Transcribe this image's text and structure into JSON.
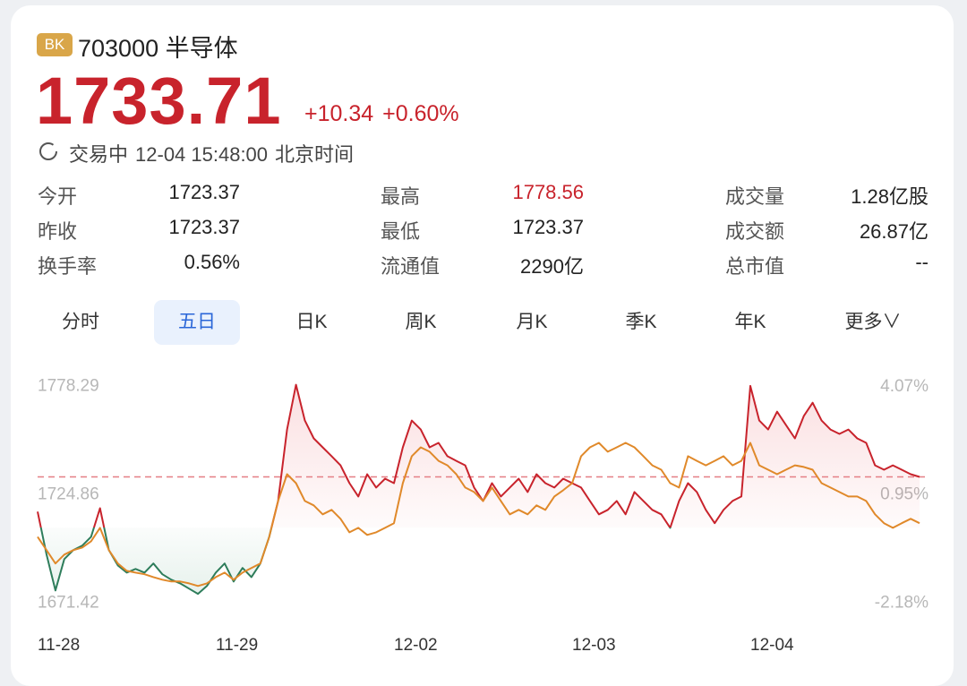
{
  "header": {
    "badge": "BK",
    "code": "703000",
    "name": "半导体"
  },
  "quote": {
    "price": 1733.71,
    "change": "+10.34",
    "change_pct": "+0.60%",
    "status": "交易中",
    "time": "12-04 15:48:00",
    "timezone": "北京时间"
  },
  "stats": [
    [
      {
        "label": "今开",
        "value": "1723.37"
      },
      {
        "label": "最高",
        "value": "1778.56",
        "highlight": true
      },
      {
        "label": "成交量",
        "value": "1.28亿股"
      }
    ],
    [
      {
        "label": "昨收",
        "value": "1723.37"
      },
      {
        "label": "最低",
        "value": "1723.37"
      },
      {
        "label": "成交额",
        "value": "26.87亿"
      }
    ],
    [
      {
        "label": "换手率",
        "value": "0.56%"
      },
      {
        "label": "流通值",
        "value": "2290亿"
      },
      {
        "label": "总市值",
        "value": "--"
      }
    ]
  ],
  "tabs": [
    "分时",
    "五日",
    "日K",
    "周K",
    "月K",
    "季K",
    "年K",
    "更多∨"
  ],
  "selected_tab": 1,
  "chart_data": {
    "type": "line",
    "categories": [
      "11-28",
      null,
      null,
      null,
      null,
      null,
      null,
      null,
      null,
      null,
      null,
      null,
      null,
      null,
      null,
      null,
      null,
      null,
      null,
      null,
      "11-29",
      null,
      null,
      null,
      null,
      null,
      null,
      null,
      null,
      null,
      null,
      null,
      null,
      null,
      null,
      null,
      null,
      null,
      null,
      null,
      "12-02",
      null,
      null,
      null,
      null,
      null,
      null,
      null,
      null,
      null,
      null,
      null,
      null,
      null,
      null,
      null,
      null,
      null,
      null,
      null,
      "12-03",
      null,
      null,
      null,
      null,
      null,
      null,
      null,
      null,
      null,
      null,
      null,
      null,
      null,
      null,
      null,
      null,
      null,
      null,
      null,
      "12-04",
      null,
      null,
      null,
      null,
      null,
      null,
      null,
      null,
      null,
      null,
      null,
      null,
      null,
      null,
      null,
      null,
      null,
      null,
      null
    ],
    "series": [
      {
        "color": "#c8232c",
        "below_color": "#2e7d5b",
        "fill": true,
        "values": [
          1716.5,
          1695.3,
          1677.6,
          1693.1,
          1697.5,
          1699.7,
          1704.1,
          1718.2,
          1697.5,
          1690.0,
          1686.4,
          1688.2,
          1686.4,
          1690.9,
          1685.6,
          1682.9,
          1681.1,
          1678.5,
          1675.9,
          1679.8,
          1686.4,
          1690.9,
          1682.0,
          1688.7,
          1684.2,
          1690.9,
          1704.1,
          1721.8,
          1757.1,
          1779.2,
          1761.5,
          1752.7,
          1748.3,
          1743.9,
          1739.4,
          1730.6,
          1724.0,
          1735.0,
          1728.4,
          1732.8,
          1730.6,
          1748.3,
          1761.5,
          1757.1,
          1748.3,
          1750.5,
          1743.9,
          1741.6,
          1739.4,
          1728.4,
          1721.8,
          1730.6,
          1724.0,
          1728.4,
          1732.8,
          1726.2,
          1735.0,
          1730.6,
          1728.4,
          1732.8,
          1730.6,
          1728.4,
          1721.8,
          1715.2,
          1717.4,
          1721.8,
          1715.2,
          1726.2,
          1721.8,
          1717.4,
          1715.2,
          1708.5,
          1721.8,
          1730.6,
          1726.2,
          1717.4,
          1710.8,
          1717.4,
          1721.8,
          1724.0,
          1778.6,
          1761.5,
          1757.1,
          1765.9,
          1759.3,
          1752.7,
          1763.7,
          1770.3,
          1761.5,
          1757.1,
          1754.9,
          1757.1,
          1752.7,
          1750.5,
          1739.4,
          1737.2,
          1739.4,
          1737.2,
          1735.0,
          1733.7
        ]
      },
      {
        "color": "#e0892a",
        "values": [
          1704.1,
          1697.5,
          1690.9,
          1695.3,
          1697.5,
          1698.8,
          1701.9,
          1708.5,
          1697.5,
          1690.9,
          1687.3,
          1686.4,
          1685.6,
          1684.2,
          1682.9,
          1682.0,
          1682.0,
          1681.1,
          1679.8,
          1681.1,
          1684.2,
          1686.4,
          1682.9,
          1686.4,
          1688.7,
          1690.9,
          1704.1,
          1721.8,
          1735.0,
          1730.6,
          1721.8,
          1719.6,
          1715.2,
          1717.4,
          1713.0,
          1706.3,
          1708.5,
          1705.0,
          1706.3,
          1708.5,
          1710.8,
          1730.6,
          1743.9,
          1748.3,
          1746.1,
          1741.6,
          1739.4,
          1735.0,
          1728.4,
          1726.2,
          1721.8,
          1728.4,
          1721.8,
          1715.2,
          1717.4,
          1715.2,
          1719.6,
          1717.4,
          1724.0,
          1727.1,
          1730.6,
          1743.9,
          1748.3,
          1750.5,
          1746.1,
          1748.3,
          1750.5,
          1748.3,
          1743.9,
          1739.4,
          1737.2,
          1730.6,
          1728.4,
          1743.9,
          1741.6,
          1739.4,
          1741.6,
          1743.9,
          1739.4,
          1741.6,
          1750.5,
          1739.4,
          1737.2,
          1735.0,
          1737.2,
          1739.4,
          1738.6,
          1737.2,
          1730.6,
          1728.4,
          1726.2,
          1724.0,
          1724.0,
          1721.8,
          1715.2,
          1710.8,
          1708.5,
          1710.8,
          1713.0,
          1710.8
        ]
      }
    ],
    "ylim": [
      1668,
      1783
    ],
    "yticks": [
      1778.29,
      1724.86,
      1671.42
    ],
    "y2lim": [
      -2.38,
      4.35
    ],
    "y2ticks": [
      {
        "value": 4.07,
        "label": "4.07%"
      },
      {
        "value": 0.95,
        "label": "0.95%"
      },
      {
        "value": -2.18,
        "label": "-2.18%"
      }
    ],
    "reference_line": "dashed",
    "grid": false
  }
}
